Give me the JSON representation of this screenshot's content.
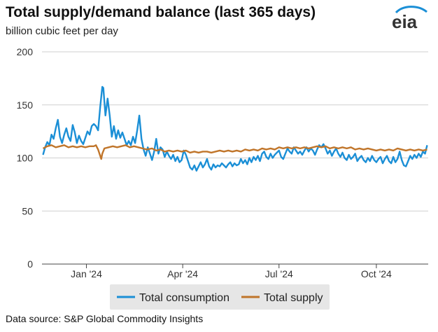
{
  "title": "Total supply/demand balance (last 365 days)",
  "subtitle": "billion cubic feet per day",
  "logo_text": "eia",
  "source": "Data source: S&P Global Commodity Insights",
  "colors": {
    "consumption": "#1b8fd6",
    "supply": "#c0752a",
    "grid": "#cfcfcf",
    "axis": "#444444",
    "legend_bg": "#e6e6e6"
  },
  "chart_data": {
    "type": "line",
    "title": "Total supply/demand balance (last 365 days)",
    "ylabel": "billion cubic feet per day",
    "ylim": [
      0,
      200
    ],
    "yticks": [
      0,
      50,
      100,
      150,
      200
    ],
    "x_start": "2023-11-20",
    "x_end": "2024-11-19",
    "xticks": [
      {
        "date": "2024-01-01",
        "label": "Jan '24"
      },
      {
        "date": "2024-04-01",
        "label": "Apr '24"
      },
      {
        "date": "2024-07-01",
        "label": "Jul '24"
      },
      {
        "date": "2024-10-01",
        "label": "Oct '24"
      }
    ],
    "grid": true,
    "legend": "bottom",
    "series": [
      {
        "name": "Total consumption",
        "points": [
          [
            "2023-11-21",
            103
          ],
          [
            "2023-11-23",
            110
          ],
          [
            "2023-11-25",
            115
          ],
          [
            "2023-11-27",
            112
          ],
          [
            "2023-11-29",
            122
          ],
          [
            "2023-12-01",
            118
          ],
          [
            "2023-12-03",
            128
          ],
          [
            "2023-12-05",
            136
          ],
          [
            "2023-12-07",
            120
          ],
          [
            "2023-12-09",
            114
          ],
          [
            "2023-12-11",
            122
          ],
          [
            "2023-12-13",
            128
          ],
          [
            "2023-12-15",
            120
          ],
          [
            "2023-12-17",
            116
          ],
          [
            "2023-12-19",
            131
          ],
          [
            "2023-12-21",
            124
          ],
          [
            "2023-12-23",
            114
          ],
          [
            "2023-12-25",
            121
          ],
          [
            "2023-12-27",
            116
          ],
          [
            "2023-12-29",
            113
          ],
          [
            "2023-12-31",
            119
          ],
          [
            "2024-01-02",
            125
          ],
          [
            "2024-01-04",
            122
          ],
          [
            "2024-01-06",
            130
          ],
          [
            "2024-01-08",
            132
          ],
          [
            "2024-01-10",
            130
          ],
          [
            "2024-01-12",
            126
          ],
          [
            "2024-01-14",
            148
          ],
          [
            "2024-01-16",
            167
          ],
          [
            "2024-01-17",
            166
          ],
          [
            "2024-01-19",
            140
          ],
          [
            "2024-01-21",
            156
          ],
          [
            "2024-01-23",
            140
          ],
          [
            "2024-01-25",
            120
          ],
          [
            "2024-01-27",
            130
          ],
          [
            "2024-01-29",
            118
          ],
          [
            "2024-01-31",
            126
          ],
          [
            "2024-02-02",
            119
          ],
          [
            "2024-02-04",
            124
          ],
          [
            "2024-02-06",
            118
          ],
          [
            "2024-02-08",
            112
          ],
          [
            "2024-02-10",
            116
          ],
          [
            "2024-02-12",
            112
          ],
          [
            "2024-02-14",
            120
          ],
          [
            "2024-02-16",
            114
          ],
          [
            "2024-02-18",
            126
          ],
          [
            "2024-02-20",
            140
          ],
          [
            "2024-02-22",
            118
          ],
          [
            "2024-02-24",
            108
          ],
          [
            "2024-02-26",
            102
          ],
          [
            "2024-02-28",
            110
          ],
          [
            "2024-03-01",
            104
          ],
          [
            "2024-03-03",
            98
          ],
          [
            "2024-03-05",
            106
          ],
          [
            "2024-03-07",
            118
          ],
          [
            "2024-03-09",
            104
          ],
          [
            "2024-03-11",
            110
          ],
          [
            "2024-03-13",
            108
          ],
          [
            "2024-03-15",
            101
          ],
          [
            "2024-03-17",
            106
          ],
          [
            "2024-03-19",
            102
          ],
          [
            "2024-03-21",
            99
          ],
          [
            "2024-03-23",
            103
          ],
          [
            "2024-03-25",
            97
          ],
          [
            "2024-03-27",
            101
          ],
          [
            "2024-03-29",
            96
          ],
          [
            "2024-03-31",
            98
          ],
          [
            "2024-04-02",
            107
          ],
          [
            "2024-04-04",
            103
          ],
          [
            "2024-04-06",
            97
          ],
          [
            "2024-04-08",
            91
          ],
          [
            "2024-04-10",
            89
          ],
          [
            "2024-04-12",
            93
          ],
          [
            "2024-04-14",
            88
          ],
          [
            "2024-04-16",
            92
          ],
          [
            "2024-04-18",
            96
          ],
          [
            "2024-04-20",
            91
          ],
          [
            "2024-04-22",
            94
          ],
          [
            "2024-04-24",
            99
          ],
          [
            "2024-04-26",
            92
          ],
          [
            "2024-04-28",
            89
          ],
          [
            "2024-04-30",
            94
          ],
          [
            "2024-05-02",
            91
          ],
          [
            "2024-05-04",
            93
          ],
          [
            "2024-05-06",
            92
          ],
          [
            "2024-05-08",
            95
          ],
          [
            "2024-05-10",
            93
          ],
          [
            "2024-05-12",
            91
          ],
          [
            "2024-05-14",
            94
          ],
          [
            "2024-05-16",
            96
          ],
          [
            "2024-05-18",
            92
          ],
          [
            "2024-05-20",
            95
          ],
          [
            "2024-05-22",
            93
          ],
          [
            "2024-05-24",
            94
          ],
          [
            "2024-05-26",
            99
          ],
          [
            "2024-05-28",
            95
          ],
          [
            "2024-05-30",
            98
          ],
          [
            "2024-06-01",
            94
          ],
          [
            "2024-06-03",
            100
          ],
          [
            "2024-06-05",
            96
          ],
          [
            "2024-06-07",
            101
          ],
          [
            "2024-06-09",
            98
          ],
          [
            "2024-06-11",
            102
          ],
          [
            "2024-06-13",
            97
          ],
          [
            "2024-06-15",
            104
          ],
          [
            "2024-06-17",
            106
          ],
          [
            "2024-06-19",
            101
          ],
          [
            "2024-06-21",
            99
          ],
          [
            "2024-06-23",
            104
          ],
          [
            "2024-06-25",
            100
          ],
          [
            "2024-06-27",
            103
          ],
          [
            "2024-06-29",
            105
          ],
          [
            "2024-07-01",
            107
          ],
          [
            "2024-07-03",
            101
          ],
          [
            "2024-07-05",
            99
          ],
          [
            "2024-07-07",
            104
          ],
          [
            "2024-07-09",
            109
          ],
          [
            "2024-07-11",
            106
          ],
          [
            "2024-07-13",
            104
          ],
          [
            "2024-07-15",
            110
          ],
          [
            "2024-07-17",
            107
          ],
          [
            "2024-07-19",
            104
          ],
          [
            "2024-07-21",
            106
          ],
          [
            "2024-07-23",
            103
          ],
          [
            "2024-07-25",
            107
          ],
          [
            "2024-07-27",
            110
          ],
          [
            "2024-07-29",
            106
          ],
          [
            "2024-07-31",
            109
          ],
          [
            "2024-08-02",
            107
          ],
          [
            "2024-08-04",
            103
          ],
          [
            "2024-08-06",
            108
          ],
          [
            "2024-08-08",
            112
          ],
          [
            "2024-08-10",
            110
          ],
          [
            "2024-08-12",
            113
          ],
          [
            "2024-08-14",
            109
          ],
          [
            "2024-08-16",
            104
          ],
          [
            "2024-08-18",
            107
          ],
          [
            "2024-08-20",
            102
          ],
          [
            "2024-08-22",
            106
          ],
          [
            "2024-08-24",
            109
          ],
          [
            "2024-08-26",
            104
          ],
          [
            "2024-08-28",
            101
          ],
          [
            "2024-08-30",
            105
          ],
          [
            "2024-09-01",
            100
          ],
          [
            "2024-09-03",
            98
          ],
          [
            "2024-09-05",
            103
          ],
          [
            "2024-09-07",
            99
          ],
          [
            "2024-09-09",
            101
          ],
          [
            "2024-09-11",
            104
          ],
          [
            "2024-09-13",
            97
          ],
          [
            "2024-09-15",
            100
          ],
          [
            "2024-09-17",
            102
          ],
          [
            "2024-09-19",
            98
          ],
          [
            "2024-09-21",
            96
          ],
          [
            "2024-09-23",
            100
          ],
          [
            "2024-09-25",
            97
          ],
          [
            "2024-09-27",
            102
          ],
          [
            "2024-09-29",
            98
          ],
          [
            "2024-10-01",
            96
          ],
          [
            "2024-10-03",
            99
          ],
          [
            "2024-10-05",
            101
          ],
          [
            "2024-10-07",
            95
          ],
          [
            "2024-10-09",
            99
          ],
          [
            "2024-10-11",
            102
          ],
          [
            "2024-10-13",
            97
          ],
          [
            "2024-10-15",
            95
          ],
          [
            "2024-10-17",
            101
          ],
          [
            "2024-10-19",
            96
          ],
          [
            "2024-10-21",
            99
          ],
          [
            "2024-10-23",
            106
          ],
          [
            "2024-10-25",
            98
          ],
          [
            "2024-10-27",
            93
          ],
          [
            "2024-10-29",
            92
          ],
          [
            "2024-10-31",
            97
          ],
          [
            "2024-11-02",
            102
          ],
          [
            "2024-11-04",
            99
          ],
          [
            "2024-11-06",
            103
          ],
          [
            "2024-11-08",
            100
          ],
          [
            "2024-11-10",
            104
          ],
          [
            "2024-11-12",
            101
          ],
          [
            "2024-11-14",
            106
          ],
          [
            "2024-11-16",
            104
          ],
          [
            "2024-11-18",
            112
          ]
        ]
      },
      {
        "name": "Total supply",
        "points": [
          [
            "2023-11-21",
            109
          ],
          [
            "2023-11-25",
            111
          ],
          [
            "2023-11-29",
            112
          ],
          [
            "2023-12-03",
            110
          ],
          [
            "2023-12-07",
            111
          ],
          [
            "2023-12-11",
            112
          ],
          [
            "2023-12-15",
            110
          ],
          [
            "2023-12-19",
            111
          ],
          [
            "2023-12-23",
            110
          ],
          [
            "2023-12-27",
            111
          ],
          [
            "2023-12-31",
            110
          ],
          [
            "2024-01-04",
            111
          ],
          [
            "2024-01-08",
            111
          ],
          [
            "2024-01-10",
            112
          ],
          [
            "2024-01-12",
            108
          ],
          [
            "2024-01-14",
            102
          ],
          [
            "2024-01-15",
            99
          ],
          [
            "2024-01-16",
            104
          ],
          [
            "2024-01-18",
            109
          ],
          [
            "2024-01-22",
            110
          ],
          [
            "2024-01-26",
            111
          ],
          [
            "2024-01-30",
            110
          ],
          [
            "2024-02-03",
            111
          ],
          [
            "2024-02-07",
            112
          ],
          [
            "2024-02-11",
            110
          ],
          [
            "2024-02-15",
            111
          ],
          [
            "2024-02-19",
            110
          ],
          [
            "2024-02-23",
            109
          ],
          [
            "2024-02-27",
            108
          ],
          [
            "2024-03-03",
            109
          ],
          [
            "2024-03-07",
            107
          ],
          [
            "2024-03-11",
            108
          ],
          [
            "2024-03-15",
            106
          ],
          [
            "2024-03-19",
            107
          ],
          [
            "2024-03-23",
            106
          ],
          [
            "2024-03-27",
            107
          ],
          [
            "2024-03-31",
            106
          ],
          [
            "2024-04-04",
            107
          ],
          [
            "2024-04-08",
            105
          ],
          [
            "2024-04-12",
            106
          ],
          [
            "2024-04-16",
            105
          ],
          [
            "2024-04-20",
            106
          ],
          [
            "2024-04-24",
            106
          ],
          [
            "2024-04-28",
            105
          ],
          [
            "2024-05-02",
            106
          ],
          [
            "2024-05-06",
            107
          ],
          [
            "2024-05-10",
            106
          ],
          [
            "2024-05-14",
            107
          ],
          [
            "2024-05-18",
            106
          ],
          [
            "2024-05-22",
            107
          ],
          [
            "2024-05-26",
            106
          ],
          [
            "2024-05-30",
            108
          ],
          [
            "2024-06-03",
            107
          ],
          [
            "2024-06-07",
            108
          ],
          [
            "2024-06-11",
            107
          ],
          [
            "2024-06-15",
            109
          ],
          [
            "2024-06-19",
            108
          ],
          [
            "2024-06-23",
            109
          ],
          [
            "2024-06-27",
            108
          ],
          [
            "2024-07-01",
            110
          ],
          [
            "2024-07-05",
            109
          ],
          [
            "2024-07-09",
            110
          ],
          [
            "2024-07-13",
            109
          ],
          [
            "2024-07-17",
            110
          ],
          [
            "2024-07-21",
            109
          ],
          [
            "2024-07-25",
            110
          ],
          [
            "2024-07-29",
            109
          ],
          [
            "2024-08-02",
            110
          ],
          [
            "2024-08-06",
            111
          ],
          [
            "2024-08-10",
            110
          ],
          [
            "2024-08-14",
            111
          ],
          [
            "2024-08-18",
            109
          ],
          [
            "2024-08-22",
            110
          ],
          [
            "2024-08-26",
            109
          ],
          [
            "2024-08-30",
            110
          ],
          [
            "2024-09-03",
            109
          ],
          [
            "2024-09-07",
            110
          ],
          [
            "2024-09-11",
            108
          ],
          [
            "2024-09-15",
            109
          ],
          [
            "2024-09-19",
            108
          ],
          [
            "2024-09-23",
            109
          ],
          [
            "2024-09-27",
            108
          ],
          [
            "2024-10-01",
            107
          ],
          [
            "2024-10-05",
            108
          ],
          [
            "2024-10-09",
            107
          ],
          [
            "2024-10-13",
            108
          ],
          [
            "2024-10-17",
            107
          ],
          [
            "2024-10-21",
            109
          ],
          [
            "2024-10-25",
            108
          ],
          [
            "2024-10-29",
            107
          ],
          [
            "2024-11-02",
            108
          ],
          [
            "2024-11-06",
            107
          ],
          [
            "2024-11-10",
            108
          ],
          [
            "2024-11-14",
            107
          ],
          [
            "2024-11-18",
            108
          ]
        ]
      }
    ]
  }
}
